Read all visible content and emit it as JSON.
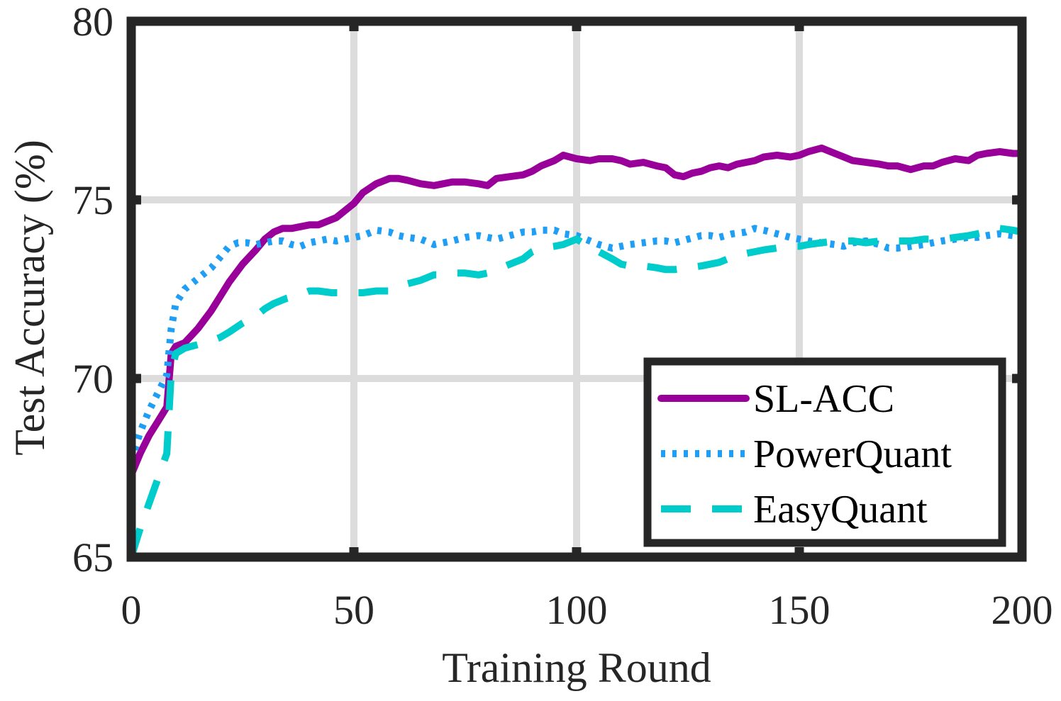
{
  "chart_data": {
    "type": "line",
    "xlabel": "Training Round",
    "ylabel": "Test Accuracy (%)",
    "xlim": [
      0,
      200
    ],
    "ylim": [
      65,
      80
    ],
    "xticks": [
      0,
      50,
      100,
      150,
      200
    ],
    "yticks": [
      65,
      70,
      75,
      80
    ],
    "x_tick_labels": [
      "0",
      "50",
      "100",
      "150",
      "200"
    ],
    "y_tick_labels": [
      "65",
      "70",
      "75",
      "80"
    ],
    "grid": true,
    "legend_position": "bottom-right",
    "series": [
      {
        "name": "SL-ACC",
        "color": "#990099",
        "style": "solid",
        "x": [
          0,
          2,
          4,
          6,
          8,
          9,
          10,
          12,
          15,
          18,
          20,
          22,
          25,
          28,
          30,
          32,
          34,
          36,
          38,
          40,
          42,
          44,
          46,
          48,
          50,
          52,
          55,
          58,
          60,
          62,
          65,
          68,
          70,
          72,
          75,
          78,
          80,
          82,
          85,
          88,
          90,
          92,
          95,
          97,
          100,
          103,
          105,
          108,
          110,
          112,
          115,
          118,
          120,
          122,
          124,
          126,
          128,
          130,
          132,
          134,
          136,
          138,
          140,
          142,
          145,
          148,
          150,
          152,
          155,
          158,
          160,
          162,
          165,
          168,
          170,
          172,
          175,
          178,
          180,
          182,
          185,
          188,
          190,
          192,
          195,
          198,
          200
        ],
        "y": [
          67.3,
          67.9,
          68.4,
          68.8,
          69.2,
          70.7,
          70.9,
          71.0,
          71.4,
          71.9,
          72.3,
          72.7,
          73.2,
          73.6,
          73.9,
          74.1,
          74.2,
          74.2,
          74.25,
          74.3,
          74.3,
          74.4,
          74.5,
          74.7,
          74.9,
          75.2,
          75.45,
          75.6,
          75.6,
          75.55,
          75.45,
          75.4,
          75.45,
          75.5,
          75.5,
          75.45,
          75.4,
          75.6,
          75.65,
          75.7,
          75.8,
          75.95,
          76.1,
          76.25,
          76.15,
          76.1,
          76.15,
          76.15,
          76.1,
          76.0,
          76.05,
          75.95,
          75.9,
          75.7,
          75.65,
          75.75,
          75.8,
          75.9,
          75.95,
          75.9,
          76.0,
          76.05,
          76.1,
          76.2,
          76.25,
          76.2,
          76.25,
          76.35,
          76.45,
          76.3,
          76.2,
          76.1,
          76.05,
          76.0,
          75.95,
          75.95,
          75.85,
          75.95,
          75.95,
          76.05,
          76.15,
          76.1,
          76.25,
          76.3,
          76.35,
          76.3,
          76.3
        ]
      },
      {
        "name": "PowerQuant",
        "color": "#1F9EF5",
        "style": "dotted",
        "x": [
          0,
          2,
          4,
          6,
          8,
          9,
          10,
          12,
          15,
          18,
          20,
          22,
          24,
          26,
          28,
          30,
          32,
          34,
          36,
          38,
          40,
          42,
          44,
          46,
          48,
          50,
          52,
          55,
          58,
          60,
          62,
          65,
          68,
          70,
          72,
          75,
          78,
          80,
          82,
          85,
          88,
          90,
          92,
          95,
          97,
          100,
          102,
          105,
          108,
          110,
          112,
          115,
          118,
          120,
          122,
          125,
          128,
          130,
          132,
          135,
          138,
          140,
          142,
          145,
          148,
          150,
          152,
          155,
          158,
          160,
          162,
          165,
          168,
          170,
          172,
          175,
          178,
          180,
          182,
          185,
          188,
          190,
          192,
          195,
          198,
          200
        ],
        "y": [
          67.7,
          68.5,
          69.1,
          69.6,
          70.1,
          71.4,
          72.1,
          72.5,
          72.8,
          73.1,
          73.4,
          73.7,
          73.8,
          73.8,
          73.75,
          73.8,
          73.85,
          73.85,
          73.75,
          73.7,
          73.8,
          73.85,
          73.9,
          73.85,
          73.9,
          73.95,
          74.0,
          74.15,
          74.1,
          74.0,
          73.95,
          73.9,
          73.75,
          73.8,
          73.85,
          73.95,
          74.0,
          73.95,
          73.9,
          74.0,
          74.1,
          74.1,
          74.15,
          74.15,
          74.05,
          74.0,
          73.9,
          73.75,
          73.65,
          73.7,
          73.75,
          73.8,
          73.85,
          73.85,
          73.8,
          73.9,
          74.0,
          74.0,
          73.95,
          74.05,
          74.1,
          74.2,
          74.15,
          74.05,
          73.95,
          73.9,
          73.85,
          73.8,
          73.75,
          73.7,
          73.8,
          73.85,
          73.75,
          73.65,
          73.65,
          73.7,
          73.75,
          73.8,
          73.85,
          73.9,
          73.95,
          73.95,
          74.0,
          74.05,
          74.0,
          74.05
        ]
      },
      {
        "name": "EasyQuant",
        "color": "#00CCCC",
        "style": "dashed",
        "x": [
          0,
          2,
          4,
          6,
          8,
          9,
          10,
          12,
          15,
          18,
          20,
          22,
          25,
          28,
          30,
          32,
          35,
          38,
          40,
          42,
          45,
          48,
          50,
          52,
          55,
          58,
          60,
          62,
          65,
          68,
          70,
          72,
          75,
          78,
          80,
          82,
          85,
          88,
          90,
          92,
          95,
          97,
          100,
          102,
          105,
          108,
          110,
          112,
          115,
          118,
          120,
          122,
          125,
          128,
          130,
          132,
          135,
          138,
          140,
          142,
          145,
          148,
          150,
          152,
          155,
          158,
          160,
          162,
          165,
          168,
          170,
          172,
          175,
          178,
          180,
          182,
          185,
          188,
          190,
          192,
          195,
          198,
          200
        ],
        "y": [
          65.0,
          65.8,
          66.5,
          67.2,
          67.9,
          70.2,
          70.7,
          70.85,
          70.95,
          71.05,
          71.15,
          71.3,
          71.55,
          71.75,
          71.95,
          72.1,
          72.25,
          72.35,
          72.45,
          72.45,
          72.4,
          72.4,
          72.4,
          72.4,
          72.45,
          72.45,
          72.55,
          72.65,
          72.75,
          72.9,
          72.9,
          72.95,
          72.95,
          72.9,
          72.95,
          73.05,
          73.2,
          73.35,
          73.55,
          73.65,
          73.7,
          73.75,
          73.9,
          73.75,
          73.55,
          73.35,
          73.2,
          73.15,
          73.15,
          73.1,
          73.05,
          73.05,
          73.1,
          73.15,
          73.2,
          73.25,
          73.4,
          73.5,
          73.55,
          73.6,
          73.65,
          73.7,
          73.7,
          73.75,
          73.8,
          73.85,
          73.85,
          73.85,
          73.8,
          73.85,
          73.85,
          73.85,
          73.85,
          73.9,
          73.9,
          73.9,
          73.95,
          74.0,
          74.05,
          74.1,
          74.2,
          74.15,
          74.1
        ]
      }
    ]
  }
}
